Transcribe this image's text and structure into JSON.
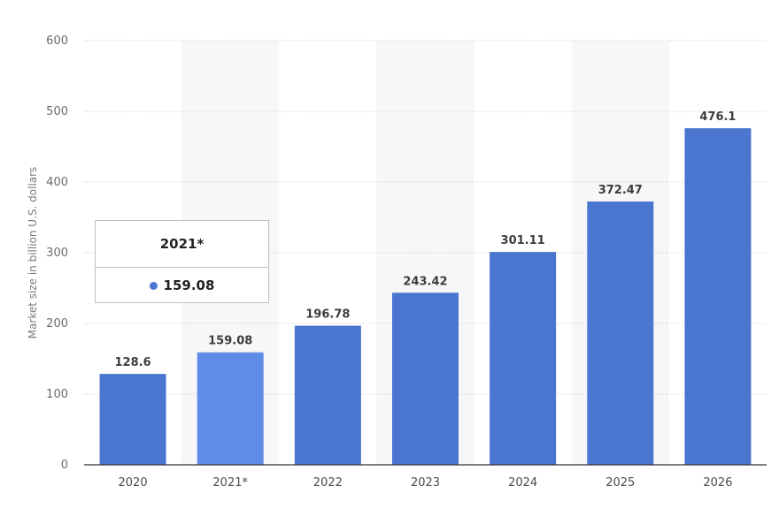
{
  "chart_data": {
    "type": "bar",
    "ylabel": "Market size in billion U.S. dollars",
    "categories": [
      "2020",
      "2021*",
      "2022",
      "2023",
      "2024",
      "2025",
      "2026"
    ],
    "values": [
      128.6,
      159.08,
      196.78,
      243.42,
      301.11,
      372.47,
      476.1
    ],
    "value_labels": [
      "128.6",
      "159.08",
      "196.78",
      "243.42",
      "301.11",
      "372.47",
      "476.1"
    ],
    "y_ticks": [
      "0",
      "100",
      "200",
      "300",
      "400",
      "500",
      "600"
    ],
    "ylim": [
      0,
      600
    ],
    "grid": true,
    "highlighted_index": 1,
    "colors": {
      "bar": "#4a76d0",
      "bar_highlight": "#5f8ce6",
      "axis": "#333333"
    }
  },
  "tooltip": {
    "title": "2021*",
    "value": "159.08",
    "dot_color": "#4a76d0"
  }
}
